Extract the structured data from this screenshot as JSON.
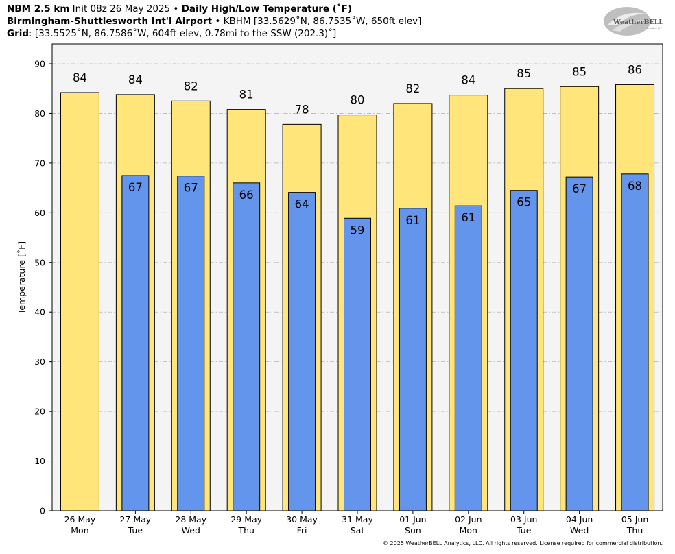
{
  "header": {
    "line1": {
      "bold1": "NBM 2.5 km",
      "text1": " Init 08z 26 May 2025 • ",
      "bold2": "Daily High/Low Temperature (˚F)"
    },
    "line2": {
      "bold": "Birmingham-Shuttlesworth Int'l Airport",
      "text": " • KBHM [33.5629˚N, 86.7535˚W, 650ft elev]"
    },
    "line3": {
      "bold": "Grid",
      "text": ": [33.5525˚N, 86.7586˚W, 604ft elev, 0.78mi to the SSW (202.3)˚]"
    }
  },
  "logo": {
    "text": "WeatherBELL",
    "subtext": "Analytics LLC"
  },
  "copyright": "© 2025 WeatherBELL Analytics, LLC. All rights reserved. License required for commercial distribution.",
  "chart_data": {
    "type": "bar",
    "ylabel": "Temperature [˚F]",
    "xlabel": "",
    "ylim": [
      0,
      94
    ],
    "yticks": [
      0,
      10,
      20,
      30,
      40,
      50,
      60,
      70,
      80,
      90
    ],
    "grid": true,
    "categories": [
      [
        "26 May",
        "Mon"
      ],
      [
        "27 May",
        "Tue"
      ],
      [
        "28 May",
        "Wed"
      ],
      [
        "29 May",
        "Thu"
      ],
      [
        "30 May",
        "Fri"
      ],
      [
        "31 May",
        "Sat"
      ],
      [
        "01 Jun",
        "Sun"
      ],
      [
        "02 Jun",
        "Mon"
      ],
      [
        "03 Jun",
        "Tue"
      ],
      [
        "04 Jun",
        "Wed"
      ],
      [
        "05 Jun",
        "Thu"
      ]
    ],
    "series": [
      {
        "key": "high",
        "color": "#FFE57A",
        "values": [
          84.2,
          83.8,
          82.5,
          80.8,
          77.8,
          79.7,
          82.0,
          83.7,
          85.0,
          85.4,
          85.8
        ],
        "labels": [
          "84",
          "84",
          "82",
          "81",
          "78",
          "80",
          "82",
          "84",
          "85",
          "85",
          "86"
        ]
      },
      {
        "key": "low",
        "color": "#6495ED",
        "values": [
          null,
          67.5,
          67.4,
          66.0,
          64.1,
          58.9,
          60.9,
          61.4,
          64.5,
          67.2,
          67.8
        ],
        "labels": [
          null,
          "67",
          "67",
          "66",
          "64",
          "59",
          "61",
          "61",
          "65",
          "67",
          "68"
        ]
      }
    ],
    "colors": {
      "plot_bg": "#F4F4F4",
      "grid": "#B4B4B4",
      "outline": "#000000"
    }
  }
}
